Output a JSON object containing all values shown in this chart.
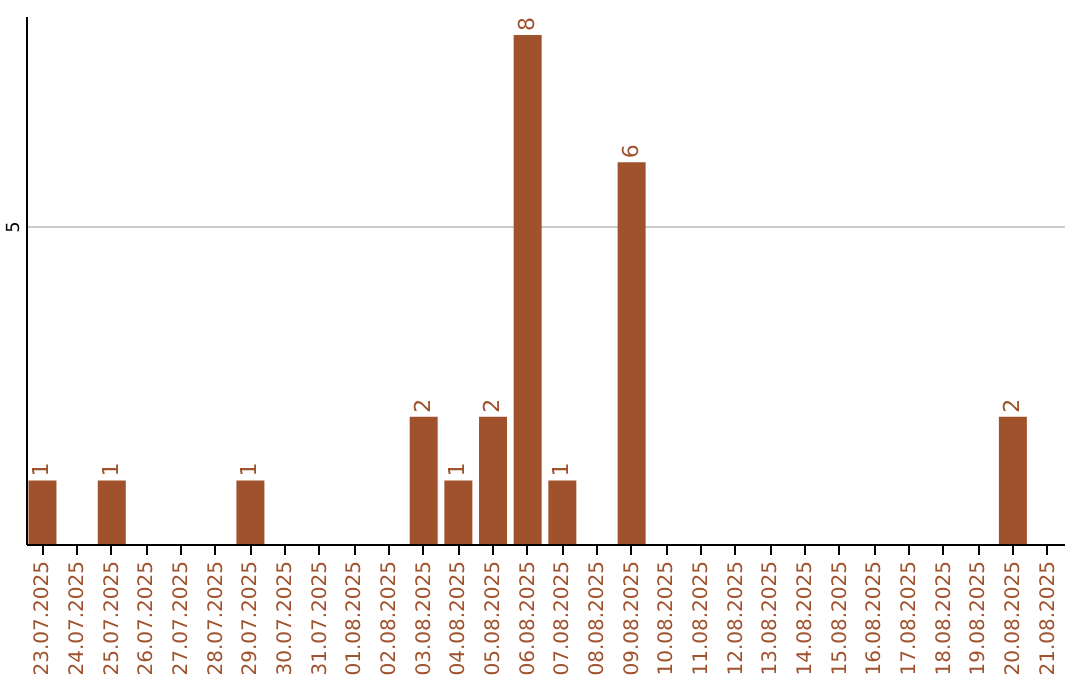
{
  "chart_data": {
    "type": "bar",
    "categories": [
      "23.07.2025",
      "24.07.2025",
      "25.07.2025",
      "26.07.2025",
      "27.07.2025",
      "28.07.2025",
      "29.07.2025",
      "30.07.2025",
      "31.07.2025",
      "01.08.2025",
      "02.08.2025",
      "03.08.2025",
      "04.08.2025",
      "05.08.2025",
      "06.08.2025",
      "07.08.2025",
      "08.08.2025",
      "09.08.2025",
      "10.08.2025",
      "11.08.2025",
      "12.08.2025",
      "13.08.2025",
      "14.08.2025",
      "15.08.2025",
      "16.08.2025",
      "17.08.2025",
      "18.08.2025",
      "19.08.2025",
      "20.08.2025",
      "21.08.2025"
    ],
    "values": [
      1,
      0,
      1,
      0,
      0,
      0,
      1,
      0,
      0,
      0,
      0,
      2,
      1,
      2,
      8,
      1,
      0,
      6,
      0,
      0,
      0,
      0,
      0,
      0,
      0,
      0,
      0,
      0,
      2,
      0
    ],
    "value_labels": [
      "1",
      null,
      "1",
      null,
      null,
      null,
      "1",
      null,
      null,
      null,
      null,
      "2",
      "1",
      "2",
      "8",
      "1",
      null,
      "6",
      null,
      null,
      null,
      null,
      null,
      null,
      null,
      null,
      null,
      null,
      "2",
      null
    ],
    "color": "#a0522d",
    "ylim": [
      0,
      8.3
    ],
    "yticks": [
      5
    ],
    "grid": "y"
  }
}
